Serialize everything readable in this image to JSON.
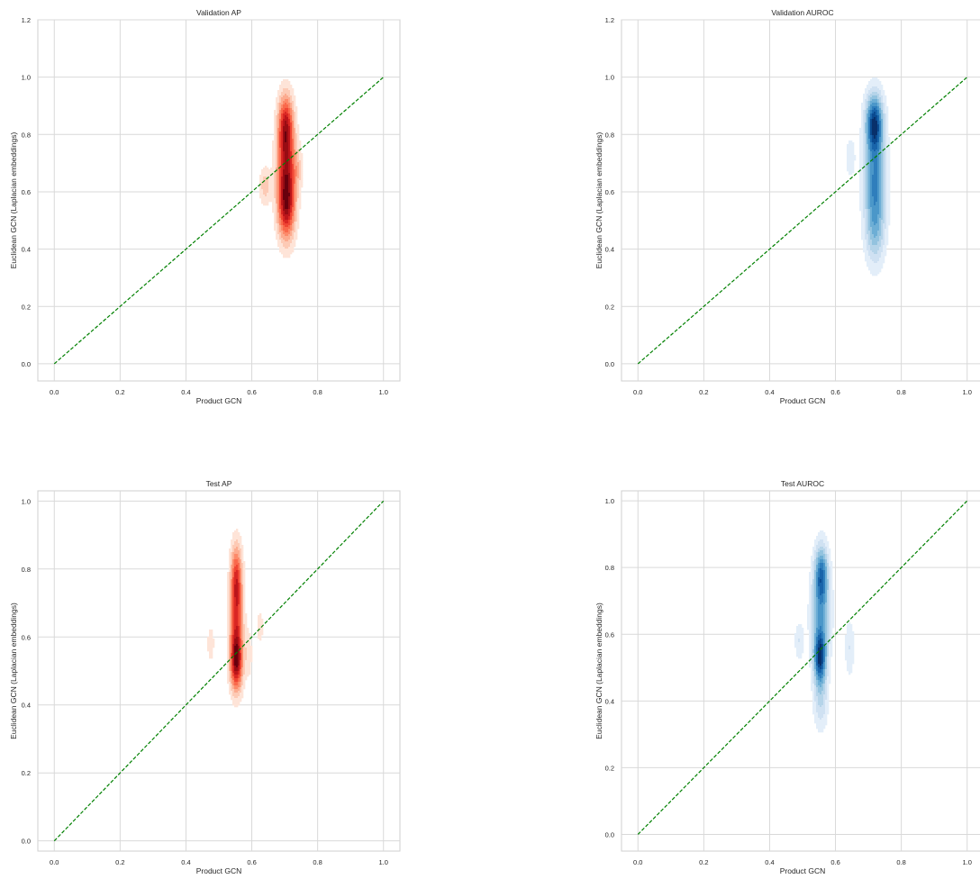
{
  "figure": {
    "grid_color": "#d9d9d9",
    "background": "#ffffff",
    "diagonal_color": "#008000"
  },
  "chart_data": [
    {
      "type": "kde-contour",
      "title": "Validation AP",
      "xlabel": "Product GCN",
      "ylabel": "Euclidean GCN (Laplacian embeddings)",
      "xlim": [
        -0.05,
        1.05
      ],
      "ylim": [
        -0.06,
        1.2
      ],
      "xticks": [
        "0.0",
        "0.2",
        "0.4",
        "0.6",
        "0.8",
        "1.0"
      ],
      "yticks": [
        "0.0",
        "0.2",
        "0.4",
        "0.6",
        "0.8",
        "1.0",
        "1.2"
      ],
      "palette": "reds",
      "diagonal": [
        [
          0,
          0
        ],
        [
          1,
          1
        ]
      ],
      "grid": true,
      "modes": [
        {
          "x": 0.705,
          "y": 0.56,
          "sx": 0.018,
          "sy": 0.085,
          "w": 1.0
        },
        {
          "x": 0.703,
          "y": 0.83,
          "sx": 0.016,
          "sy": 0.075,
          "w": 0.85
        },
        {
          "x": 0.705,
          "y": 0.7,
          "sx": 0.02,
          "sy": 0.08,
          "w": 0.55
        },
        {
          "x": 0.64,
          "y": 0.62,
          "sx": 0.012,
          "sy": 0.045,
          "w": 0.25
        },
        {
          "x": 0.74,
          "y": 0.68,
          "sx": 0.01,
          "sy": 0.05,
          "w": 0.15
        }
      ]
    },
    {
      "type": "kde-contour",
      "title": "Validation AUROC",
      "xlabel": "Product GCN",
      "ylabel": "Euclidean GCN (Laplacian embeddings)",
      "xlim": [
        -0.05,
        1.05
      ],
      "ylim": [
        -0.06,
        1.2
      ],
      "xticks": [
        "0.0",
        "0.2",
        "0.4",
        "0.6",
        "0.8",
        "1.0"
      ],
      "yticks": [
        "0.0",
        "0.2",
        "0.4",
        "0.6",
        "0.8",
        "1.0",
        "1.2"
      ],
      "palette": "blues",
      "diagonal": [
        [
          0,
          0
        ],
        [
          1,
          1
        ]
      ],
      "grid": true,
      "modes": [
        {
          "x": 0.718,
          "y": 0.84,
          "sx": 0.018,
          "sy": 0.07,
          "w": 1.0
        },
        {
          "x": 0.72,
          "y": 0.63,
          "sx": 0.022,
          "sy": 0.12,
          "w": 0.75
        },
        {
          "x": 0.72,
          "y": 0.45,
          "sx": 0.02,
          "sy": 0.08,
          "w": 0.3
        },
        {
          "x": 0.645,
          "y": 0.72,
          "sx": 0.01,
          "sy": 0.05,
          "w": 0.18
        }
      ]
    },
    {
      "type": "kde-contour",
      "title": "Test AP",
      "xlabel": "Product GCN",
      "ylabel": "Euclidean GCN (Laplacian embeddings)",
      "xlim": [
        -0.05,
        1.05
      ],
      "ylim": [
        -0.03,
        1.03
      ],
      "xticks": [
        "0.0",
        "0.2",
        "0.4",
        "0.6",
        "0.8",
        "1.0"
      ],
      "yticks": [
        "0.0",
        "0.2",
        "0.4",
        "0.6",
        "0.8",
        "1.0"
      ],
      "palette": "reds",
      "diagonal": [
        [
          0,
          0
        ],
        [
          1,
          1
        ]
      ],
      "grid": true,
      "modes": [
        {
          "x": 0.553,
          "y": 0.53,
          "sx": 0.013,
          "sy": 0.06,
          "w": 1.0
        },
        {
          "x": 0.553,
          "y": 0.77,
          "sx": 0.012,
          "sy": 0.07,
          "w": 0.7
        },
        {
          "x": 0.553,
          "y": 0.65,
          "sx": 0.014,
          "sy": 0.07,
          "w": 0.5
        },
        {
          "x": 0.475,
          "y": 0.58,
          "sx": 0.007,
          "sy": 0.035,
          "w": 0.18
        },
        {
          "x": 0.625,
          "y": 0.63,
          "sx": 0.007,
          "sy": 0.035,
          "w": 0.15
        },
        {
          "x": 0.59,
          "y": 0.55,
          "sx": 0.008,
          "sy": 0.05,
          "w": 0.15
        }
      ]
    },
    {
      "type": "kde-contour",
      "title": "Test AUROC",
      "xlabel": "Product GCN",
      "ylabel": "Euclidean GCN (Laplacian embeddings)",
      "xlim": [
        -0.05,
        1.05
      ],
      "ylim": [
        -0.05,
        1.03
      ],
      "xticks": [
        "0.0",
        "0.2",
        "0.4",
        "0.6",
        "0.8",
        "1.0"
      ],
      "yticks": [
        "0.0",
        "0.2",
        "0.4",
        "0.6",
        "0.8",
        "1.0"
      ],
      "palette": "blues",
      "diagonal": [
        [
          0,
          0
        ],
        [
          1,
          1
        ]
      ],
      "grid": true,
      "modes": [
        {
          "x": 0.553,
          "y": 0.53,
          "sx": 0.013,
          "sy": 0.055,
          "w": 1.0
        },
        {
          "x": 0.557,
          "y": 0.78,
          "sx": 0.014,
          "sy": 0.06,
          "w": 0.75
        },
        {
          "x": 0.555,
          "y": 0.66,
          "sx": 0.02,
          "sy": 0.09,
          "w": 0.55
        },
        {
          "x": 0.49,
          "y": 0.58,
          "sx": 0.01,
          "sy": 0.04,
          "w": 0.2
        },
        {
          "x": 0.643,
          "y": 0.56,
          "sx": 0.01,
          "sy": 0.06,
          "w": 0.2
        },
        {
          "x": 0.555,
          "y": 0.4,
          "sx": 0.015,
          "sy": 0.06,
          "w": 0.3
        }
      ]
    }
  ]
}
